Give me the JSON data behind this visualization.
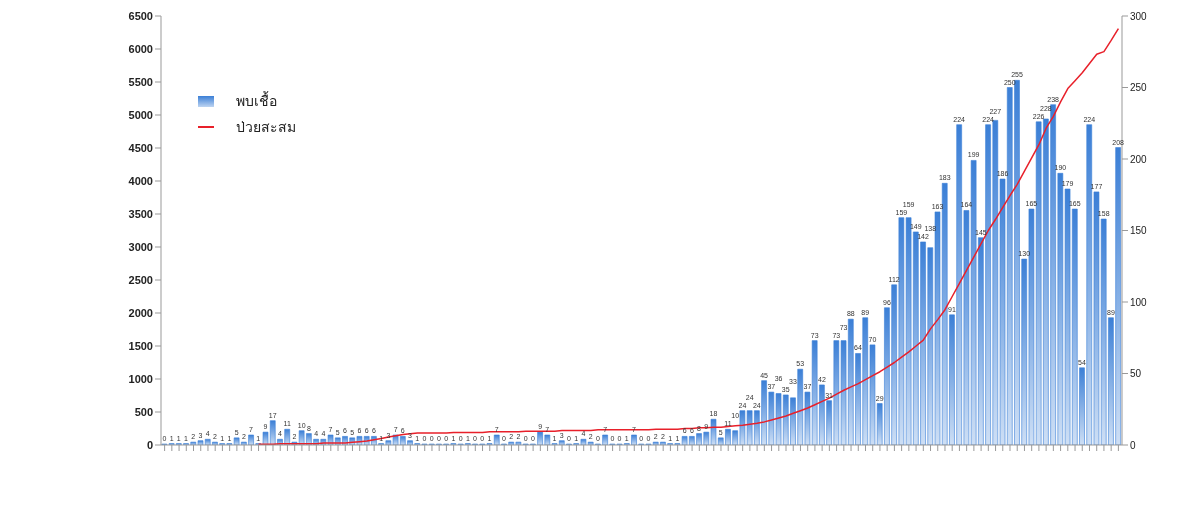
{
  "chart_data": {
    "type": "bar",
    "categories": [
      null,
      null,
      null,
      null,
      null,
      null,
      null,
      null,
      null,
      null,
      null,
      null,
      null,
      null,
      null,
      null,
      null,
      null,
      null,
      null,
      null,
      null,
      null,
      null,
      null,
      null,
      null,
      null,
      null,
      null,
      null,
      null,
      null,
      null,
      null,
      null,
      null,
      null,
      null,
      null,
      null,
      null,
      null,
      null,
      null,
      null,
      null,
      null,
      null,
      null,
      null,
      null,
      null,
      null,
      null,
      null,
      null,
      null,
      null,
      null,
      null,
      null,
      null,
      null,
      null,
      null,
      null,
      null,
      null,
      null,
      null,
      null,
      null,
      null,
      null,
      null,
      null,
      null,
      null,
      null,
      null,
      null,
      null,
      null,
      null,
      null,
      null,
      null,
      null,
      null,
      null,
      null,
      null,
      null,
      null,
      null,
      null,
      null,
      null,
      null,
      null,
      null,
      null,
      null,
      null,
      null,
      null,
      null,
      null,
      null,
      null,
      null,
      null,
      null,
      null,
      null,
      null,
      null,
      null,
      null,
      null,
      null,
      null,
      null,
      null,
      null,
      null,
      null,
      null,
      null,
      null,
      null,
      null
    ],
    "series": [
      {
        "name": "พบเชื้อ",
        "axis": "y2",
        "color": "#3b7fd6",
        "data_labels": true,
        "values": [
          0,
          1,
          1,
          1,
          2,
          3,
          4,
          2,
          1,
          1,
          5,
          2,
          7,
          1,
          9,
          17,
          4,
          11,
          2,
          10,
          8,
          4,
          4,
          7,
          5,
          6,
          5,
          6,
          6,
          6,
          1,
          3,
          7,
          6,
          3,
          1,
          0,
          0,
          0,
          0,
          1,
          0,
          1,
          0,
          0,
          1,
          7,
          0,
          2,
          2,
          0,
          0,
          9,
          7,
          1,
          3,
          0,
          1,
          4,
          2,
          0,
          7,
          0,
          0,
          1,
          7,
          0,
          0,
          2,
          2,
          1,
          1,
          6,
          6,
          8,
          9,
          18,
          5,
          11,
          10,
          24,
          24,
          24,
          45,
          37,
          36,
          35,
          33,
          53,
          37,
          73,
          42,
          31,
          73,
          73,
          88,
          64,
          89,
          70,
          29,
          96,
          112,
          159,
          159,
          149,
          142,
          138,
          163,
          183,
          91,
          224,
          164,
          199,
          145,
          224,
          227,
          186,
          250,
          255,
          130,
          165,
          226,
          228,
          238,
          190,
          179,
          165,
          54,
          224,
          177,
          158,
          89,
          208
        ]
      },
      {
        "name": "ป่วยสะสม",
        "type": "line",
        "color": "#e8202a",
        "values": [
          null,
          null,
          null,
          null,
          null,
          null,
          null,
          null,
          null,
          null,
          null,
          null,
          null,
          10,
          10,
          10,
          20,
          20,
          20,
          20,
          20,
          20,
          30,
          30,
          30,
          30,
          40,
          50,
          60,
          80,
          100,
          120,
          140,
          160,
          170,
          180,
          180,
          180,
          180,
          180,
          190,
          190,
          190,
          190,
          190,
          200,
          200,
          200,
          200,
          200,
          210,
          210,
          210,
          210,
          210,
          220,
          220,
          220,
          220,
          220,
          230,
          230,
          230,
          230,
          230,
          230,
          230,
          230,
          240,
          240,
          240,
          240,
          250,
          250,
          260,
          260,
          270,
          270,
          280,
          290,
          300,
          315,
          330,
          350,
          380,
          410,
          440,
          480,
          520,
          560,
          610,
          660,
          710,
          770,
          830,
          880,
          930,
          990,
          1050,
          1110,
          1180,
          1250,
          1330,
          1410,
          1500,
          1590,
          1760,
          1900,
          2050,
          2250,
          2450,
          2650,
          2850,
          3050,
          3250,
          3420,
          3600,
          3780,
          3950,
          4150,
          4350,
          4550,
          4800,
          4980,
          5200,
          5400,
          5520,
          5640,
          5780,
          5920,
          5960,
          6130,
          6310
        ]
      }
    ],
    "ylim": [
      0,
      6500
    ],
    "yticks": [
      0,
      500,
      1000,
      1500,
      2000,
      2500,
      3000,
      3500,
      4000,
      4500,
      5000,
      5500,
      6000,
      6500
    ],
    "y2lim": [
      0,
      300
    ],
    "y2ticks": [
      0,
      50,
      100,
      150,
      200,
      250,
      300
    ],
    "legend": "top left"
  }
}
